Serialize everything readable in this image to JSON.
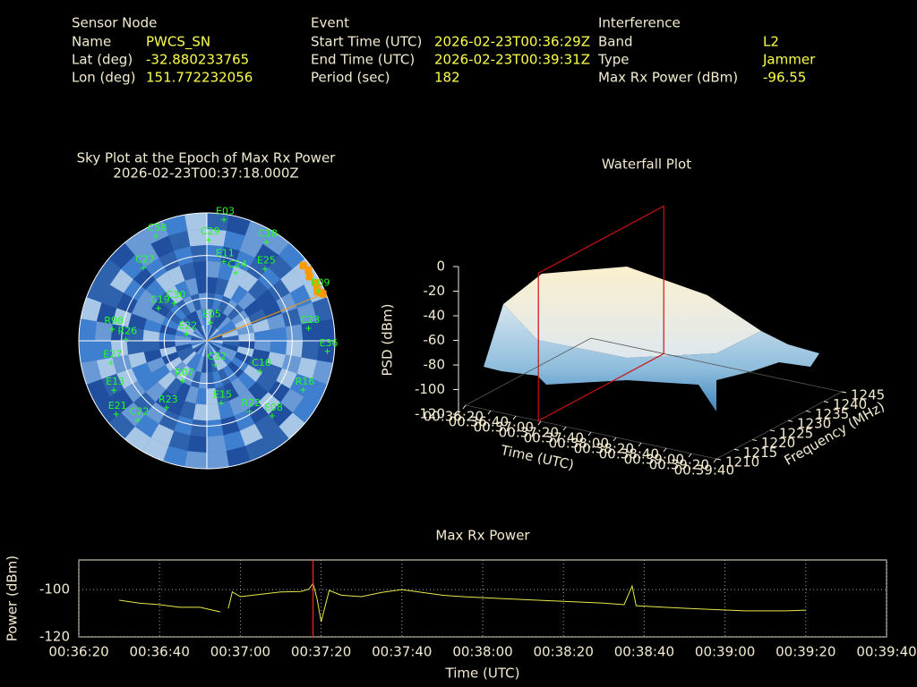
{
  "header": {
    "columns": [
      {
        "title": "Sensor Node",
        "rows": [
          {
            "label": "Name",
            "value": "PWCS_SN"
          },
          {
            "label": "Lat (deg)",
            "value": "-32.880233765"
          },
          {
            "label": "Lon (deg)",
            "value": "151.772232056"
          }
        ]
      },
      {
        "title": "Event",
        "rows": [
          {
            "label": "Start Time (UTC)",
            "value": "2026-02-23T00:36:29Z"
          },
          {
            "label": "End Time (UTC)",
            "value": "2026-02-23T00:39:31Z"
          },
          {
            "label": "Period (sec)",
            "value": "182"
          }
        ]
      },
      {
        "title": "Interference",
        "rows": [
          {
            "label": "Band",
            "value": "L2"
          },
          {
            "label": "Type",
            "value": "Jammer"
          },
          {
            "label": "Max Rx Power (dBm)",
            "value": "-96.55"
          }
        ]
      }
    ]
  },
  "chart_data": [
    {
      "type": "polar",
      "title": "Sky Plot at the Epoch of Max Rx Power",
      "subtitle": "2026-02-23T00:37:18.000Z",
      "rlim": [
        0,
        90
      ],
      "rticks": [
        30,
        60
      ],
      "azticks": [
        0,
        90,
        180,
        270
      ],
      "color": "#22ff22",
      "satellites": [
        "E03",
        "C29",
        "C18",
        "E11",
        "C24",
        "E25",
        "R09",
        "C23",
        "E36",
        "R16",
        "C10",
        "E08",
        "R22",
        "E15",
        "C32",
        "E05",
        "E22",
        "R07",
        "R23",
        "C22",
        "E21",
        "E13",
        "E27",
        "R26",
        "R98",
        "C30",
        "C19",
        "C27",
        "C58"
      ],
      "azimuth": [
        8,
        1,
        31,
        12,
        23,
        39,
        66,
        83,
        95,
        117,
        120,
        139,
        149,
        167,
        161,
        11,
        288,
        211,
        211,
        221,
        231,
        242,
        257,
        271,
        277,
        319,
        304,
        319,
        334
      ],
      "elevation": [
        4,
        19,
        9,
        33,
        38,
        25,
        4,
        18,
        5,
        14,
        47,
        20,
        32,
        45,
        72,
        77,
        75,
        57,
        35,
        16,
        8,
        16,
        21,
        33,
        23,
        55,
        49,
        22,
        8
      ],
      "jammer": {
        "color": "#ff9900",
        "bearing": 68,
        "azimuth": [
          52,
          55,
          58,
          62,
          64,
          66,
          67,
          68
        ],
        "elevation": [
          4,
          3,
          5,
          3,
          4,
          5,
          3,
          2
        ]
      }
    },
    {
      "type": "waterfall3d",
      "title": "Waterfall Plot",
      "x_label": "Time (UTC)",
      "y_label": "Frequency (MHz)",
      "z_label": "PSD (dBm)",
      "xlim": [
        "00:36:20",
        "00:39:40"
      ],
      "xticks": [
        "00:36:20",
        "00:36:40",
        "00:37:00",
        "00:37:20",
        "00:37:40",
        "00:38:00",
        "00:38:20",
        "00:38:40",
        "00:39:00",
        "00:39:20",
        "00:39:40"
      ],
      "ylim": [
        1210,
        1245
      ],
      "yticks": [
        1210,
        1215,
        1220,
        1225,
        1230,
        1235,
        1240,
        1245
      ],
      "zlim": [
        -120,
        0
      ],
      "zticks": [
        0,
        -20,
        -40,
        -60,
        -80,
        -100,
        -120
      ],
      "marker_x": "00:37:18",
      "marker_color": "#cc1111"
    },
    {
      "type": "line",
      "title": "Max Rx Power",
      "x_label": "Time (UTC)",
      "y_label": "Power (dBm)",
      "xlim": [
        "00:36:20",
        "00:39:40"
      ],
      "xticks": [
        "00:36:20",
        "00:36:40",
        "00:37:00",
        "00:37:20",
        "00:37:40",
        "00:38:00",
        "00:38:20",
        "00:38:40",
        "00:39:00",
        "00:39:20",
        "00:39:40"
      ],
      "ylim": [
        -120,
        -87.5
      ],
      "yticks": [
        -120,
        -100
      ],
      "grid": true,
      "color": "#e8e84a",
      "marker_x": "00:37:18",
      "marker_color": "#ff2222",
      "x": [
        "00:36:30",
        "00:36:35",
        "00:36:40",
        "00:36:45",
        "00:36:50",
        "00:36:55",
        "00:36:56",
        "00:36:57",
        "00:36:58",
        "00:37:00",
        "00:37:05",
        "00:37:10",
        "00:37:15",
        "00:37:17",
        "00:37:18",
        "00:37:19",
        "00:37:20",
        "00:37:22",
        "00:37:25",
        "00:37:30",
        "00:37:35",
        "00:37:40",
        "00:37:45",
        "00:37:50",
        "00:37:55",
        "00:38:00",
        "00:38:10",
        "00:38:20",
        "00:38:30",
        "00:38:35",
        "00:38:37",
        "00:38:38",
        "00:38:45",
        "00:38:55",
        "00:39:05",
        "00:39:15",
        "00:39:20"
      ],
      "values": [
        -104.5,
        -105.7,
        -106.4,
        -107.5,
        -107.5,
        -109.4,
        null,
        -108,
        -101,
        -103,
        -102,
        -101,
        -100.8,
        -99.8,
        -97.4,
        -104,
        -113.6,
        -100.4,
        -102.4,
        -103,
        -101.2,
        -100,
        -101.2,
        -102.4,
        -103,
        -103.4,
        -104.2,
        -105,
        -105.7,
        -106.4,
        -98.5,
        -106.8,
        -107.5,
        -108.3,
        -109,
        -109,
        -108.7
      ]
    }
  ]
}
